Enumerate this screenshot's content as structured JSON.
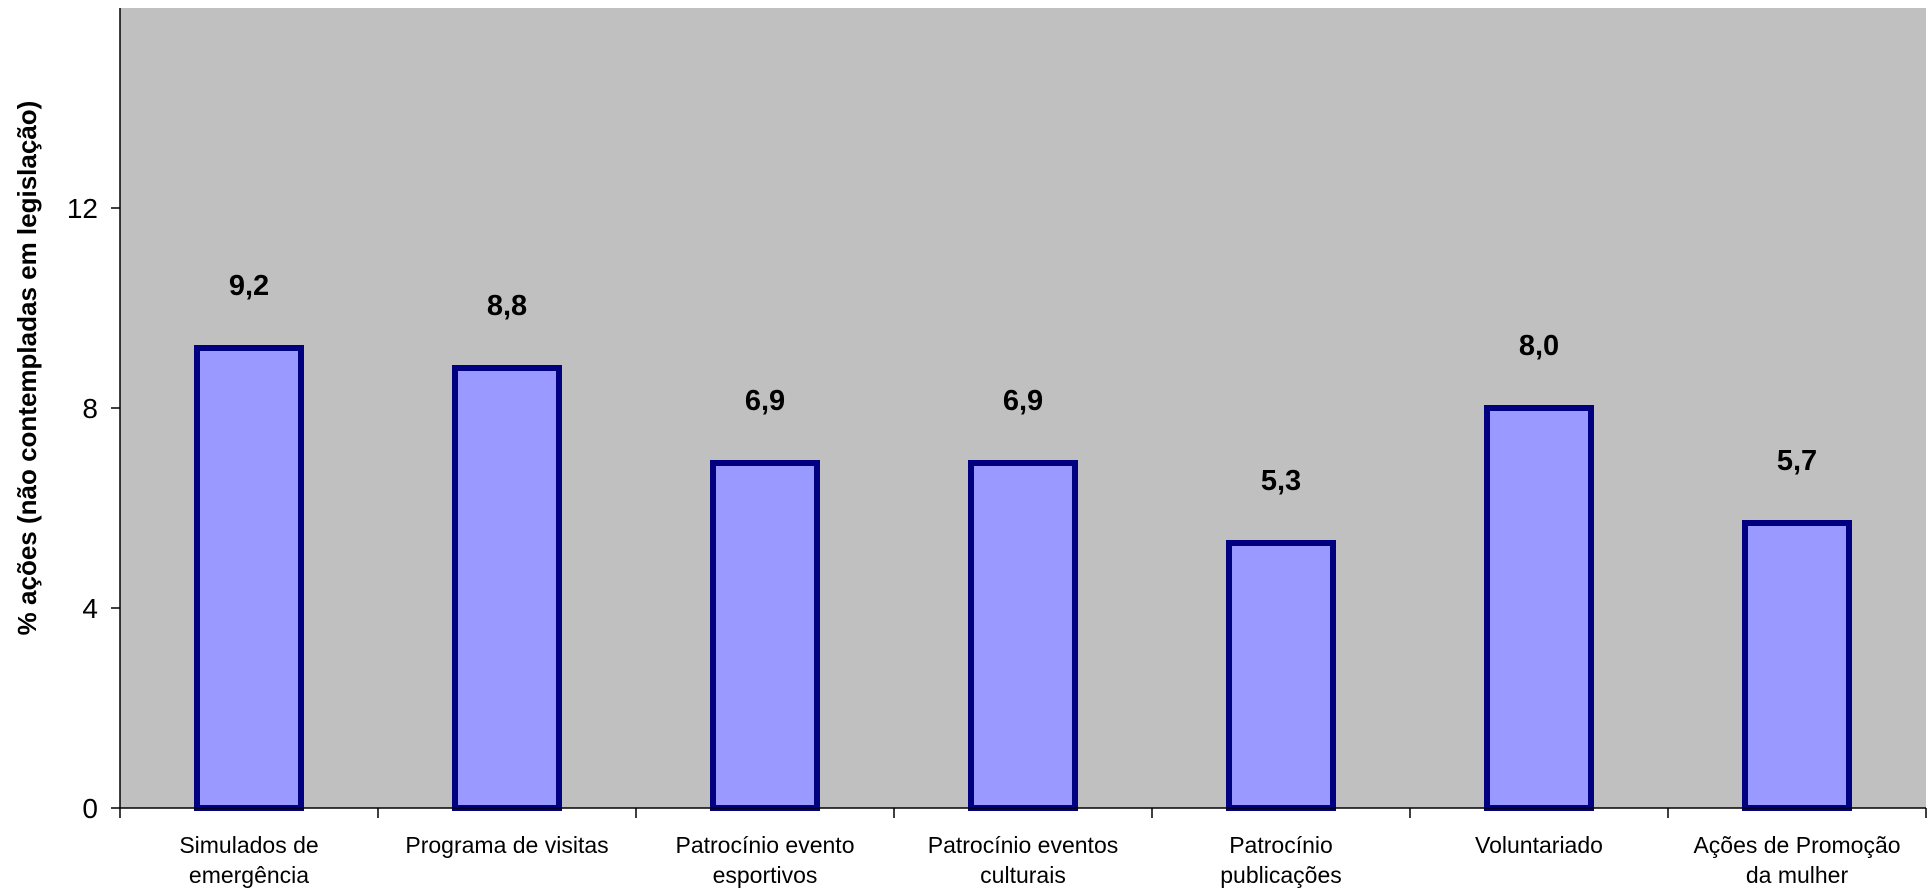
{
  "chart_data": {
    "type": "bar",
    "title": "",
    "xlabel": "",
    "ylabel": "% ações (não contempladas em legislação)",
    "ylim": [
      0,
      16
    ],
    "yticks": [
      0,
      4,
      8,
      12
    ],
    "grid": false,
    "legend": "none",
    "categories": [
      [
        "Simulados de",
        "emergência"
      ],
      [
        "Programa de visitas"
      ],
      [
        "Patrocínio evento",
        "esportivos"
      ],
      [
        "Patrocínio eventos",
        "culturais"
      ],
      [
        "Patrocínio",
        "publicações"
      ],
      [
        "Voluntariado"
      ],
      [
        "Ações de Promoção",
        "da mulher"
      ]
    ],
    "values": [
      9.2,
      8.8,
      6.9,
      6.9,
      5.3,
      8.0,
      5.7
    ],
    "value_labels": [
      "9,2",
      "8,8",
      "6,9",
      "6,9",
      "5,3",
      "8,0",
      "5,7"
    ],
    "colors": {
      "plot_background": "#c0c0c0",
      "bar_fill": "#9999ff",
      "bar_border": "#000080",
      "axis": "#000000"
    }
  }
}
